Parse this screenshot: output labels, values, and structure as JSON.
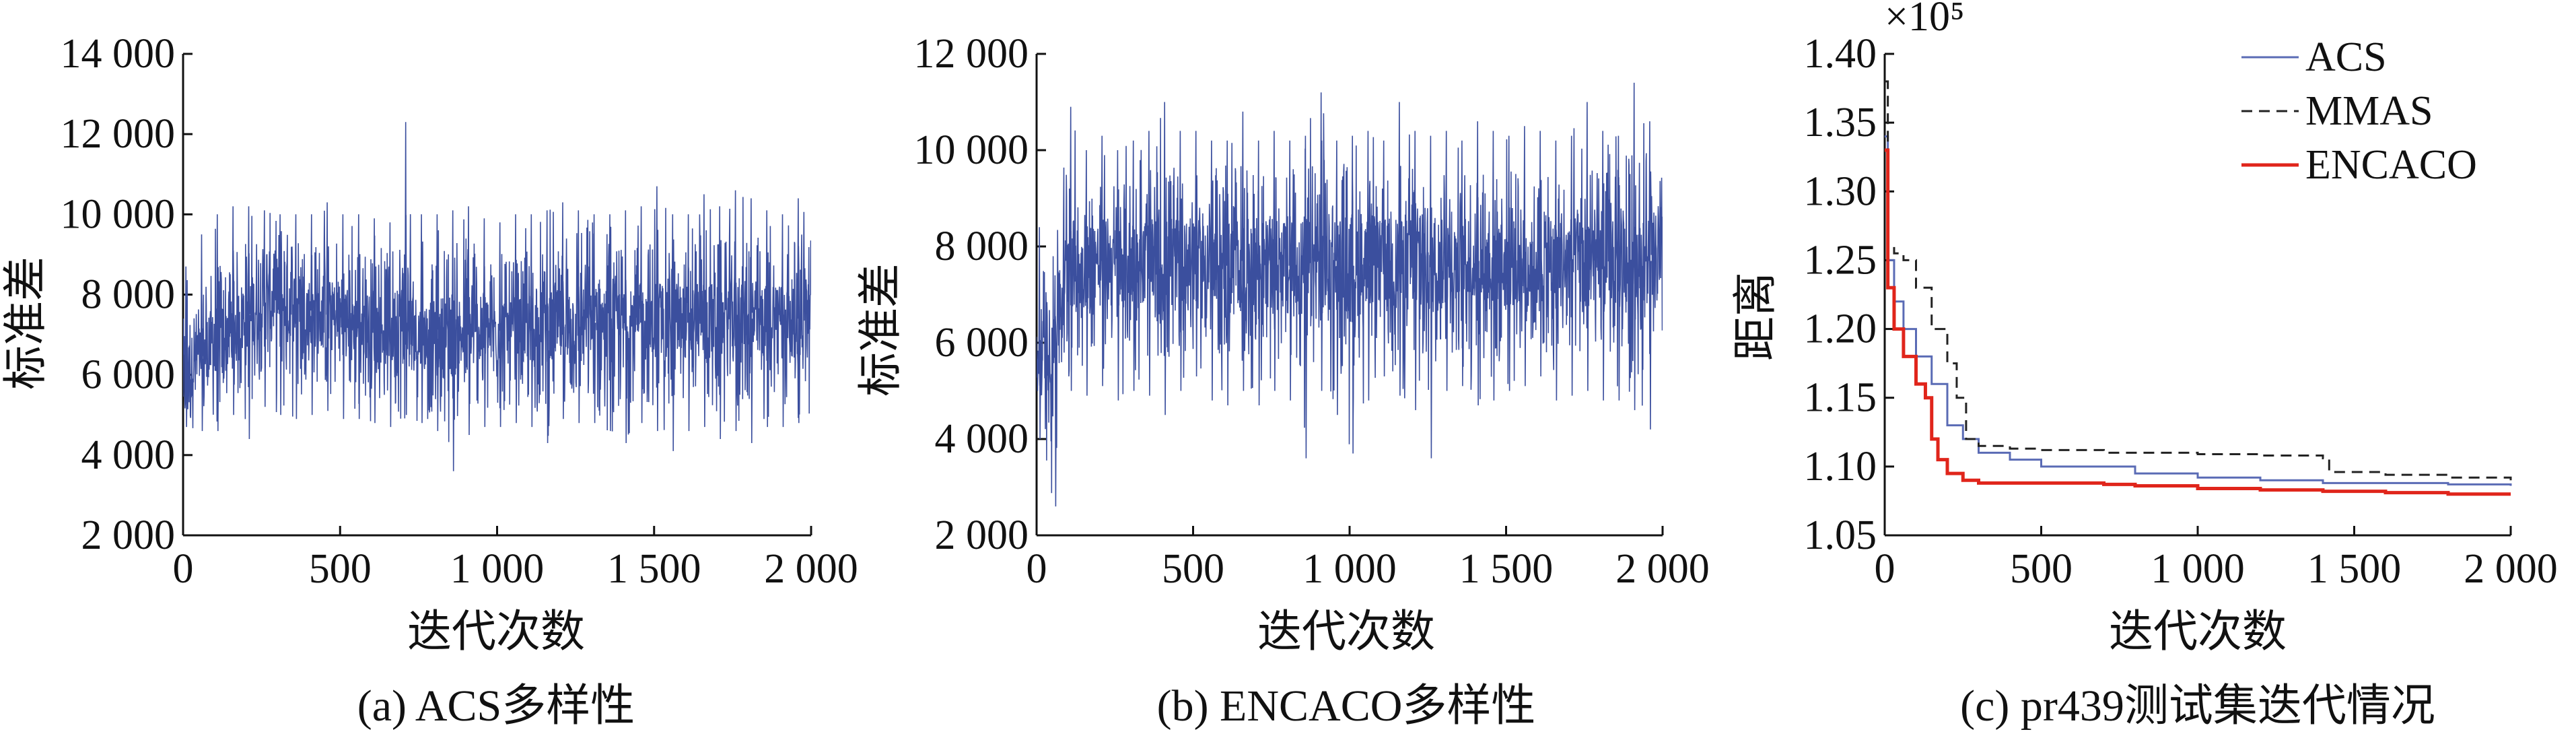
{
  "chart_data": [
    {
      "type": "line",
      "caption": "(a)  ACS多样性",
      "xlabel": "迭代次数",
      "ylabel": "标准差",
      "xlim": [
        0,
        2000
      ],
      "ylim": [
        2000,
        14000
      ],
      "xticks": [
        0,
        500,
        1000,
        1500,
        2000
      ],
      "xtick_labels": [
        "0",
        "500",
        "1 000",
        "1 500",
        "2 000"
      ],
      "yticks": [
        2000,
        4000,
        6000,
        8000,
        10000,
        12000,
        14000
      ],
      "ytick_labels": [
        "2 000",
        "4 000",
        "6 000",
        "8 000",
        "10 000",
        "12 000",
        "14 000"
      ],
      "color": "#3b4f9e",
      "series": [
        {
          "x": [
            0,
            50,
            100,
            150,
            200,
            250,
            300,
            350,
            400,
            450,
            500,
            550,
            600,
            650,
            700,
            750,
            800,
            850,
            900,
            950,
            1000,
            1050,
            1100,
            1150,
            1200,
            1250,
            1300,
            1350,
            1400,
            1450,
            1500,
            1550,
            1600,
            1650,
            1700,
            1750,
            1800,
            1850,
            1900,
            1950,
            2000
          ],
          "values": [
            6000,
            6400,
            6800,
            7000,
            7500,
            7800,
            7900,
            7800,
            7600,
            7500,
            7400,
            7300,
            7200,
            7100,
            7300,
            7000,
            6900,
            7000,
            7000,
            7100,
            7100,
            7000,
            7100,
            7100,
            7200,
            7200,
            7300,
            7300,
            7200,
            7300,
            7300,
            7400,
            7300,
            7400,
            7300,
            7400,
            7400,
            7300,
            7500,
            7400,
            7600
          ],
          "min": [
            4700,
            4600,
            4600,
            5000,
            4400,
            5200,
            5000,
            4900,
            5000,
            5100,
            4900,
            4900,
            4800,
            4700,
            5000,
            4800,
            4600,
            3600,
            4500,
            4700,
            4700,
            4800,
            4700,
            4300,
            4900,
            4800,
            4800,
            4600,
            4300,
            4800,
            4600,
            4100,
            4600,
            4700,
            4400,
            4600,
            4300,
            4700,
            4700,
            4800,
            4700
          ],
          "max": [
            8700,
            9500,
            10000,
            10200,
            10200,
            10100,
            10000,
            10000,
            10000,
            10300,
            10000,
            10000,
            9900,
            9800,
            12300,
            10000,
            10000,
            10100,
            10200,
            9900,
            9800,
            10000,
            10000,
            10100,
            10300,
            10100,
            10000,
            10000,
            10100,
            10200,
            10700,
            10000,
            10000,
            10500,
            10200,
            10600,
            10400,
            10100,
            10000,
            10400,
            10300
          ]
        }
      ]
    },
    {
      "type": "line",
      "caption": "(b) ENCACO多样性",
      "xlabel": "迭代次数",
      "ylabel": "标准差",
      "xlim": [
        0,
        2000
      ],
      "ylim": [
        2000,
        12000
      ],
      "xticks": [
        0,
        500,
        1000,
        1500,
        2000
      ],
      "xtick_labels": [
        "0",
        "500",
        "1 000",
        "1 500",
        "2 000"
      ],
      "yticks": [
        2000,
        4000,
        6000,
        8000,
        10000,
        12000
      ],
      "ytick_labels": [
        "2 000",
        "4 000",
        "6 000",
        "8 000",
        "10 000",
        "12 000"
      ],
      "color": "#3b4f9e",
      "series": [
        {
          "x": [
            0,
            50,
            100,
            150,
            200,
            250,
            300,
            350,
            400,
            450,
            500,
            550,
            600,
            650,
            700,
            750,
            800,
            850,
            900,
            950,
            1000,
            1050,
            1100,
            1150,
            1200,
            1250,
            1300,
            1350,
            1400,
            1450,
            1500,
            1550,
            1600,
            1650,
            1700,
            1750,
            1800,
            1850,
            1900,
            1950,
            2000
          ],
          "values": [
            5500,
            6000,
            7600,
            7600,
            7700,
            7600,
            7700,
            7600,
            7500,
            7600,
            7700,
            7600,
            7600,
            7700,
            7600,
            7700,
            7600,
            7500,
            7600,
            7700,
            7600,
            7600,
            7700,
            7600,
            7600,
            7700,
            7600,
            7600,
            7700,
            7600,
            7600,
            7700,
            7600,
            7600,
            7700,
            7600,
            7600,
            7700,
            7600,
            7700,
            7600
          ],
          "min": [
            4000,
            2600,
            5000,
            4900,
            5100,
            4800,
            5000,
            4900,
            4500,
            5000,
            5300,
            4800,
            4700,
            5000,
            4700,
            5000,
            4800,
            3600,
            5000,
            4500,
            3700,
            4800,
            5300,
            4900,
            4600,
            3600,
            5000,
            5100,
            4700,
            4800,
            5000,
            5100,
            5300,
            4800,
            4900,
            5000,
            4800,
            4800,
            4600,
            4200,
            4800
          ],
          "max": [
            8400,
            7400,
            10900,
            10000,
            10300,
            10000,
            10200,
            10400,
            11000,
            10400,
            10400,
            10200,
            10200,
            10800,
            10200,
            10400,
            10200,
            10300,
            11200,
            10200,
            10300,
            10400,
            10200,
            11000,
            10400,
            10300,
            10400,
            10200,
            10600,
            10400,
            10300,
            10500,
            10400,
            10200,
            10300,
            11000,
            10400,
            10300,
            11400,
            10600,
            10300
          ]
        }
      ]
    },
    {
      "type": "line",
      "caption": "(c)  pr439测试集迭代情况",
      "xlabel": "迭代次数",
      "ylabel": "距离",
      "scale_label": "×10⁵",
      "xlim": [
        0,
        2000
      ],
      "ylim": [
        1.05,
        1.4
      ],
      "xticks": [
        0,
        500,
        1000,
        1500,
        2000
      ],
      "xtick_labels": [
        "0",
        "500",
        "1 000",
        "1 500",
        "2 000"
      ],
      "yticks": [
        1.05,
        1.1,
        1.15,
        1.2,
        1.25,
        1.3,
        1.35,
        1.4
      ],
      "ytick_labels": [
        "1.05",
        "1.10",
        "1.15",
        "1.20",
        "1.25",
        "1.30",
        "1.35",
        "1.40"
      ],
      "legend_position": "top-right",
      "series": [
        {
          "name": "ACS",
          "color": "#5a6bb5",
          "style": "solid",
          "x": [
            0,
            10,
            30,
            60,
            100,
            150,
            200,
            250,
            300,
            400,
            500,
            600,
            800,
            1000,
            1200,
            1400,
            1600,
            1800,
            2000
          ],
          "values": [
            1.34,
            1.25,
            1.22,
            1.2,
            1.18,
            1.16,
            1.13,
            1.12,
            1.11,
            1.105,
            1.1,
            1.1,
            1.095,
            1.092,
            1.09,
            1.088,
            1.088,
            1.087,
            1.086
          ]
        },
        {
          "name": "MMAS",
          "color": "#222222",
          "style": "dashed",
          "x": [
            0,
            10,
            30,
            60,
            100,
            150,
            200,
            230,
            260,
            300,
            400,
            500,
            700,
            900,
            1000,
            1200,
            1400,
            1420,
            1600,
            1800,
            2000
          ],
          "values": [
            1.38,
            1.26,
            1.255,
            1.25,
            1.23,
            1.2,
            1.175,
            1.15,
            1.12,
            1.115,
            1.113,
            1.112,
            1.11,
            1.11,
            1.109,
            1.108,
            1.106,
            1.096,
            1.094,
            1.092,
            1.09
          ]
        },
        {
          "name": "ENCACO",
          "color": "#e0251b",
          "style": "solid",
          "x": [
            0,
            10,
            30,
            60,
            100,
            130,
            150,
            170,
            200,
            250,
            300,
            500,
            700,
            800,
            1000,
            1200,
            1400,
            1600,
            1800,
            2000
          ],
          "values": [
            1.33,
            1.23,
            1.2,
            1.18,
            1.16,
            1.15,
            1.12,
            1.105,
            1.095,
            1.09,
            1.088,
            1.088,
            1.087,
            1.086,
            1.084,
            1.083,
            1.082,
            1.081,
            1.08,
            1.08
          ]
        }
      ]
    }
  ]
}
